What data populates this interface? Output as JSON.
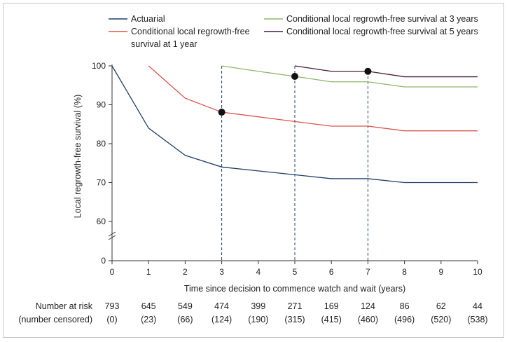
{
  "chart_data": {
    "type": "line",
    "xlabel": "Time since decision to commence watch and wait (years)",
    "ylabel": "Local regrowth-free survival (%)",
    "xlim": [
      0,
      10
    ],
    "ylim": [
      0,
      100
    ],
    "x_ticks": [
      0,
      1,
      2,
      3,
      4,
      5,
      6,
      7,
      8,
      9,
      10
    ],
    "y_ticks": [
      0,
      60,
      70,
      80,
      90,
      100
    ],
    "y_axis_break": true,
    "grid": false,
    "legend_position": "top",
    "series": [
      {
        "name": "Actuarial",
        "color": "#1f3f66",
        "x": [
          0,
          1,
          2,
          3,
          4,
          5,
          6,
          7,
          8,
          9,
          10
        ],
        "y": [
          100,
          84,
          77,
          74,
          73,
          72,
          71,
          71,
          70,
          70,
          70
        ]
      },
      {
        "name": "Conditional local regrowth-free survival at 1 year",
        "legend_lines": [
          "Conditional local regrowth-free",
          "survival at 1 year"
        ],
        "color": "#d9534f",
        "x": [
          1,
          2,
          3,
          4,
          5,
          6,
          7,
          8,
          9,
          10
        ],
        "y": [
          100,
          91.7,
          88.1,
          86.9,
          85.7,
          84.5,
          84.5,
          83.3,
          83.3,
          83.3
        ],
        "marker": {
          "x": 3,
          "y": 88.1
        }
      },
      {
        "name": "Conditional local regrowth-free survival at 3 years",
        "color": "#8db56a",
        "x": [
          3,
          4,
          5,
          6,
          7,
          8,
          9,
          10
        ],
        "y": [
          100,
          98.6,
          97.3,
          95.9,
          95.9,
          94.6,
          94.6,
          94.6
        ]
      },
      {
        "name": "Conditional local regrowth-free survival at 5 years",
        "color": "#4a1a3a",
        "x": [
          5,
          6,
          7,
          8,
          9,
          10
        ],
        "y": [
          100,
          98.6,
          98.6,
          97.2,
          97.2,
          97.2
        ],
        "marker": {
          "x": 5,
          "y": 97.3
        }
      }
    ],
    "extra_markers": [
      {
        "x": 7,
        "y": 98.6
      }
    ],
    "reference_lines_x": [
      3,
      5,
      7
    ],
    "risk_table": {
      "row1_label": "Number at risk",
      "row2_label": "(number censored)",
      "at_risk": [
        "793",
        "645",
        "549",
        "474",
        "399",
        "271",
        "169",
        "124",
        "86",
        "62",
        "44"
      ],
      "censored": [
        "(0)",
        "(23)",
        "(66)",
        "(124)",
        "(190)",
        "(315)",
        "(415)",
        "(460)",
        "(496)",
        "(520)",
        "(538)"
      ]
    }
  }
}
